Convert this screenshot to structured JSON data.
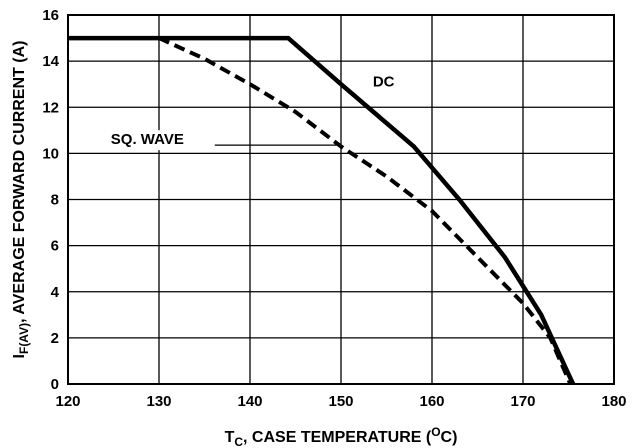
{
  "chart_data": {
    "type": "line",
    "xlabel": "T_C, CASE TEMPERATURE (°C)",
    "ylabel": "I_F(AV), AVERAGE FORWARD CURRENT (A)",
    "xlim": [
      120,
      180
    ],
    "ylim": [
      0,
      16
    ],
    "x_ticks": [
      120,
      130,
      140,
      150,
      160,
      170,
      180
    ],
    "y_ticks": [
      0,
      2,
      4,
      6,
      8,
      10,
      12,
      14,
      16
    ],
    "grid": true,
    "series": [
      {
        "name": "DC",
        "style": "solid",
        "color": "#000000",
        "x": [
          120,
          144.2,
          150,
          158,
          163,
          168,
          172,
          175.5
        ],
        "y": [
          15,
          15,
          13,
          10.3,
          8,
          5.5,
          3,
          0
        ]
      },
      {
        "name": "SQ. WAVE",
        "style": "dashed",
        "color": "#000000",
        "x": [
          130,
          135,
          140,
          145,
          150,
          155,
          160,
          165,
          170,
          173,
          175.2
        ],
        "y": [
          15,
          14.1,
          13,
          11.8,
          10.3,
          9,
          7.5,
          5.5,
          3.5,
          2,
          0
        ]
      }
    ],
    "annotations": [
      "DC",
      "SQ. WAVE"
    ]
  }
}
